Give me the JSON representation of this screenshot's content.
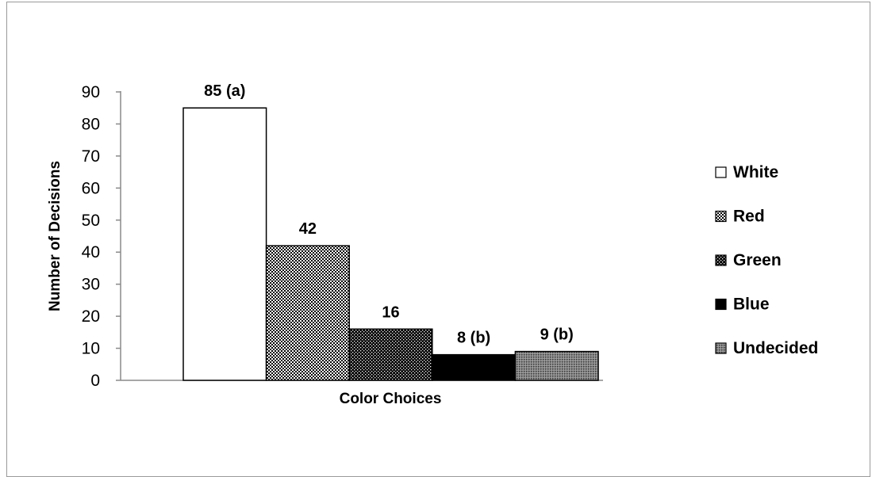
{
  "chart_data": {
    "type": "bar",
    "categories": [
      "White",
      "Red",
      "Green",
      "Blue",
      "Undecided"
    ],
    "values": [
      85,
      42,
      16,
      8,
      9
    ],
    "data_labels": [
      "85 (a)",
      "42",
      "16",
      "8 (b)",
      "9 (b)"
    ],
    "title": "",
    "xlabel": "Color Choices",
    "ylabel": "Number of Decisions",
    "ylim": [
      0,
      90
    ],
    "yticks": [
      0,
      10,
      20,
      30,
      40,
      50,
      60,
      70,
      80,
      90
    ],
    "grid": false,
    "legend": {
      "placement": "right",
      "entries": [
        "White",
        "Red",
        "Green",
        "Blue",
        "Undecided"
      ]
    },
    "fills": [
      {
        "name": "White",
        "pattern": "solid",
        "color": "#ffffff"
      },
      {
        "name": "Red",
        "pattern": "fine-checker",
        "color": "#000000"
      },
      {
        "name": "Green",
        "pattern": "dense-checker",
        "color": "#000000"
      },
      {
        "name": "Blue",
        "pattern": "solid",
        "color": "#000000"
      },
      {
        "name": "Undecided",
        "pattern": "gray-dots",
        "color": "#555555"
      }
    ]
  }
}
